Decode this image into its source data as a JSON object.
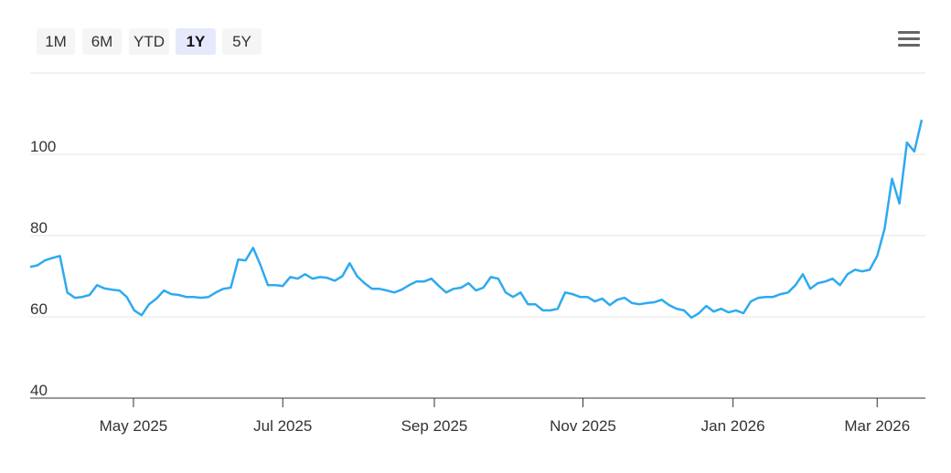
{
  "toolbar": {
    "buttons": [
      "1M",
      "6M",
      "YTD",
      "1Y",
      "5Y"
    ],
    "selected": 3
  },
  "chart_data": {
    "type": "line",
    "series": [
      {
        "color": "#2eaaf0",
        "values": [
          72.3,
          72.7,
          73.9,
          74.5,
          75.0,
          66.0,
          64.7,
          64.9,
          65.4,
          67.8,
          67.0,
          66.7,
          66.5,
          64.9,
          61.6,
          60.4,
          63.1,
          64.5,
          66.5,
          65.6,
          65.4,
          64.9,
          64.9,
          64.7,
          64.9,
          66.0,
          66.9,
          67.2,
          74.1,
          73.9,
          77.0,
          72.7,
          67.8,
          67.8,
          67.6,
          69.8,
          69.4,
          70.5,
          69.4,
          69.8,
          69.6,
          68.9,
          70.0,
          73.2,
          70.0,
          68.3,
          66.9,
          66.9,
          66.5,
          66.0,
          66.7,
          67.8,
          68.7,
          68.7,
          69.4,
          67.6,
          66.0,
          66.9,
          67.2,
          68.3,
          66.5,
          67.2,
          69.8,
          69.4,
          66.0,
          64.9,
          66.0,
          63.1,
          63.1,
          61.6,
          61.6,
          62.0,
          66.0,
          65.6,
          64.9,
          64.9,
          63.8,
          64.5,
          62.9,
          64.2,
          64.7,
          63.4,
          63.1,
          63.4,
          63.6,
          64.2,
          62.9,
          62.0,
          61.6,
          59.8,
          60.9,
          62.7,
          61.3,
          62.0,
          61.1,
          61.6,
          60.9,
          63.8,
          64.7,
          64.9,
          64.9,
          65.6,
          66.0,
          67.8,
          70.5,
          66.9,
          68.3,
          68.7,
          69.4,
          67.8,
          70.5,
          71.6,
          71.2,
          71.6,
          75.0,
          81.7,
          94.0,
          87.9,
          102.9,
          100.7,
          108.5
        ]
      }
    ],
    "xlim": [
      0,
      120
    ],
    "xticks": [
      {
        "value": 13.9,
        "label": "May 2025"
      },
      {
        "value": 34,
        "label": "Jul 2025"
      },
      {
        "value": 54.4,
        "label": "Sep 2025"
      },
      {
        "value": 74.4,
        "label": "Nov 2025"
      },
      {
        "value": 94.6,
        "label": "Jan 2026"
      },
      {
        "value": 114,
        "label": "Mar 2026"
      }
    ],
    "ylim": [
      40,
      120
    ],
    "yticks": [
      40,
      60,
      80,
      100
    ],
    "grid": true
  }
}
